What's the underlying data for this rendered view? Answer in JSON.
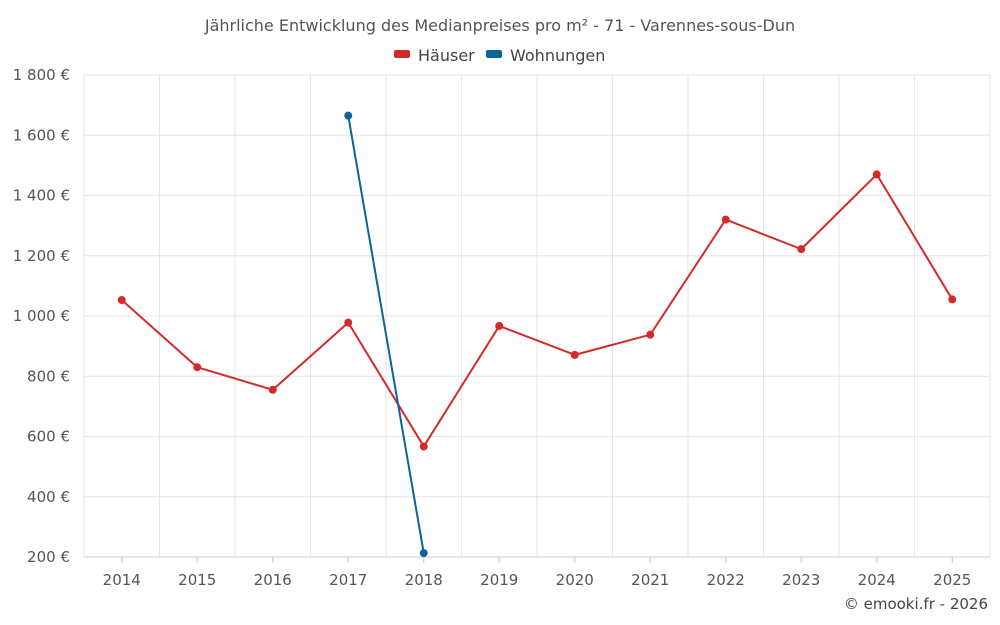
{
  "chart_data": {
    "type": "line",
    "title": "Jährliche Entwicklung des Medianpreises pro m² - 71 - Varennes-sous-Dun",
    "xlabel": "",
    "ylabel": "",
    "categories": [
      "2014",
      "2015",
      "2016",
      "2017",
      "2018",
      "2019",
      "2020",
      "2021",
      "2022",
      "2023",
      "2024",
      "2025"
    ],
    "ylim": [
      200,
      1800
    ],
    "yticks": [
      200,
      400,
      600,
      800,
      1000,
      1200,
      1400,
      1600,
      1800
    ],
    "ytick_labels": [
      "200 €",
      "400 €",
      "600 €",
      "800 €",
      "1 000 €",
      "1 200 €",
      "1 400 €",
      "1 600 €",
      "1 800 €"
    ],
    "grid": true,
    "legend_position": "top-center",
    "series": [
      {
        "name": "Häuser",
        "color": "#d32a2a",
        "values": [
          1053,
          830,
          755,
          978,
          567,
          967,
          871,
          938,
          1320,
          1222,
          1470,
          1055
        ]
      },
      {
        "name": "Wohnungen",
        "color": "#0e6399",
        "values": [
          null,
          null,
          null,
          1665,
          213,
          null,
          null,
          null,
          null,
          null,
          null,
          null
        ]
      }
    ],
    "credit": "© emooki.fr - 2026"
  }
}
